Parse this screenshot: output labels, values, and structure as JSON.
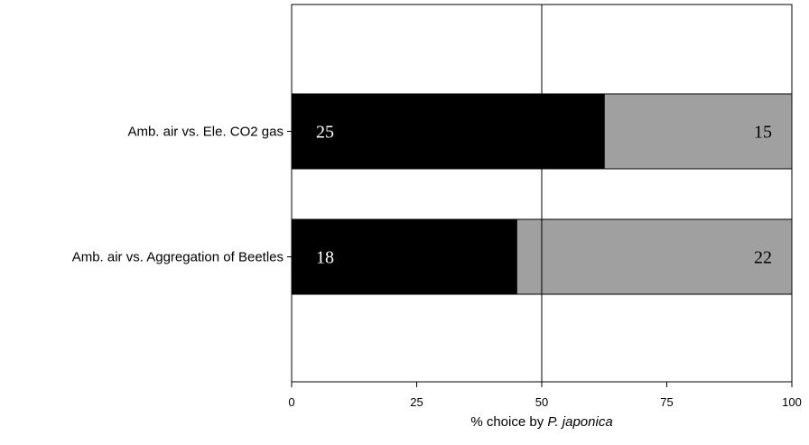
{
  "chart_data": {
    "type": "bar",
    "orientation": "horizontal",
    "stacked": true,
    "categories": [
      "Amb. air vs. Ele. CO2 gas",
      "Amb. air vs. Aggregation of Beetles"
    ],
    "series": [
      {
        "values": [
          62.5,
          45
        ],
        "counts": [
          "25",
          "18"
        ],
        "color": "#000000"
      },
      {
        "values": [
          37.5,
          55
        ],
        "counts": [
          "15",
          "22"
        ],
        "color": "#a0a0a0"
      }
    ],
    "xlim": [
      0,
      100
    ],
    "xticks": [
      "0",
      "25",
      "50",
      "75",
      "100"
    ],
    "xlabel_prefix": "% choice by ",
    "xlabel_italic": "P. japonica",
    "reference_line": 50,
    "grid": false
  }
}
